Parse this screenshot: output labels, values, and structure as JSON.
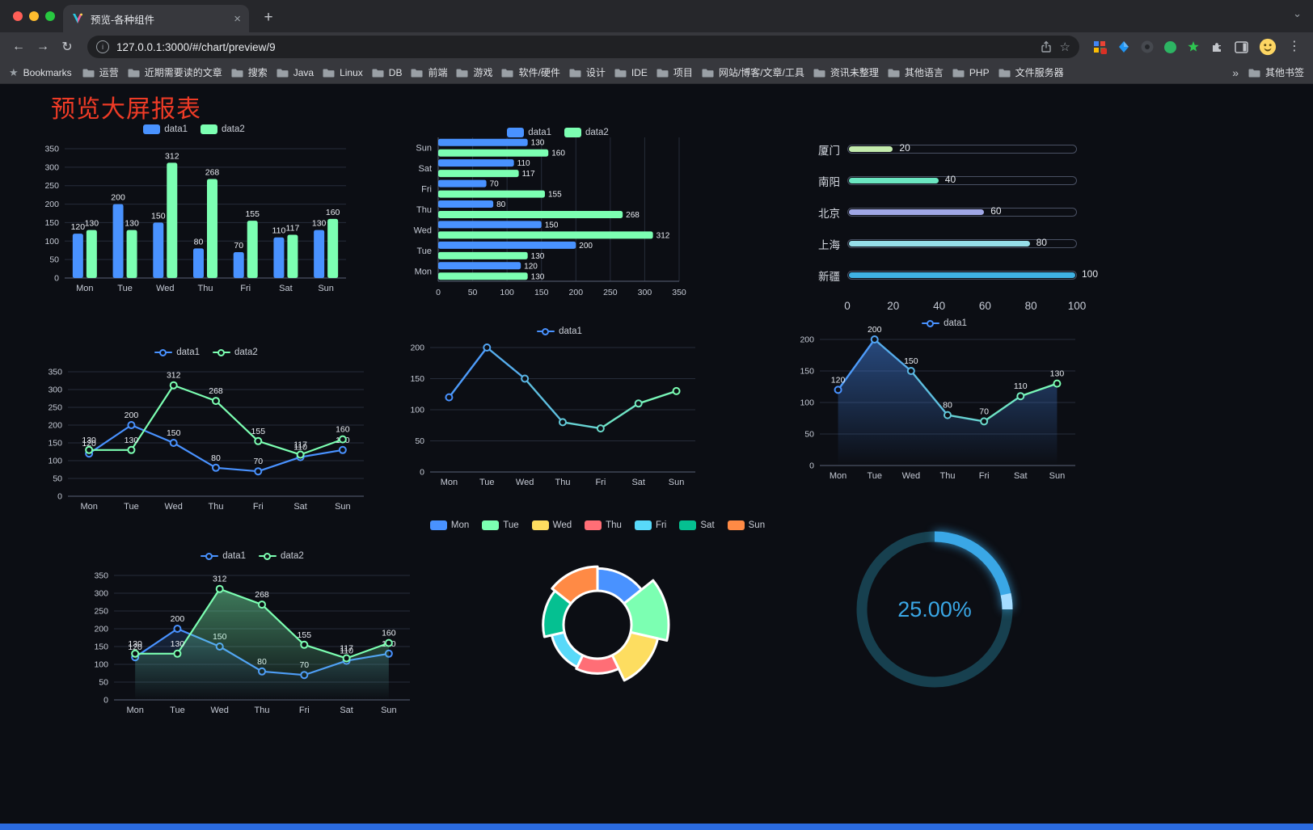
{
  "window": {
    "tab": {
      "title": "预览-各种组件",
      "close_icon": "×",
      "new_tab_icon": "+"
    },
    "icons": {
      "back": "←",
      "forward": "→",
      "reload": "↻",
      "menu": "⋮",
      "star": "☆",
      "tab_chevron": "⌄",
      "overflow": "»",
      "info": "i"
    },
    "address_bar": {
      "url": "127.0.0.1:3000/#/chart/preview/9"
    },
    "bookmarks_bar": {
      "first_item": "Bookmarks",
      "items": [
        "运营",
        "近期需要读的文章",
        "搜索",
        "Java",
        "Linux",
        "DB",
        "前端",
        "游戏",
        "软件/硬件",
        "设计",
        "IDE",
        "项目",
        "网站/博客/文章/工具",
        "资讯未整理",
        "其他语言",
        "PHP",
        "文件服务器"
      ],
      "other_bookmarks": "其他书签"
    }
  },
  "page": {
    "title": "预览大屏报表",
    "accent_color": "#ee3b26",
    "background": "#0c0e14",
    "footer_color": "#2b6be0"
  },
  "chart_data": [
    {
      "id": "grouped-bar",
      "type": "bar",
      "categories": [
        "Mon",
        "Tue",
        "Wed",
        "Thu",
        "Fri",
        "Sat",
        "Sun"
      ],
      "series": [
        {
          "name": "data1",
          "color": "#4992ff",
          "values": [
            120,
            200,
            150,
            80,
            70,
            110,
            130
          ]
        },
        {
          "name": "data2",
          "color": "#7cffb2",
          "values": [
            130,
            130,
            312,
            268,
            155,
            117,
            160
          ]
        }
      ],
      "ylim": [
        0,
        350
      ],
      "ystep": 50
    },
    {
      "id": "horizontal-bar",
      "type": "hbar",
      "categories": [
        "Mon",
        "Tue",
        "Wed",
        "Thu",
        "Fri",
        "Sat",
        "Sun"
      ],
      "series": [
        {
          "name": "data1",
          "color": "#4992ff",
          "values": [
            120,
            200,
            150,
            80,
            70,
            110,
            130
          ]
        },
        {
          "name": "data2",
          "color": "#7cffb2",
          "values": [
            130,
            130,
            312,
            268,
            155,
            117,
            160
          ]
        }
      ],
      "xlim": [
        0,
        350
      ],
      "xstep": 50
    },
    {
      "id": "city-progress",
      "type": "progress",
      "items": [
        {
          "label": "厦门",
          "value": 20,
          "color": "#c4ebad"
        },
        {
          "label": "南阳",
          "value": 40,
          "color": "#6be6c1"
        },
        {
          "label": "北京",
          "value": 60,
          "color": "#a0a7e6"
        },
        {
          "label": "上海",
          "value": 80,
          "color": "#96dee8"
        },
        {
          "label": "新疆",
          "value": 100,
          "color": "#3fb1e3"
        }
      ],
      "max": 100,
      "ticks": [
        0,
        20,
        40,
        60,
        80,
        100
      ]
    },
    {
      "id": "dual-line",
      "type": "line",
      "categories": [
        "Mon",
        "Tue",
        "Wed",
        "Thu",
        "Fri",
        "Sat",
        "Sun"
      ],
      "series": [
        {
          "name": "data1",
          "color": "#4992ff",
          "values": [
            120,
            200,
            150,
            80,
            70,
            110,
            130
          ],
          "labels": true
        },
        {
          "name": "data2",
          "color": "#7cffb2",
          "values": [
            130,
            130,
            312,
            268,
            155,
            117,
            160
          ],
          "labels": true
        }
      ],
      "ylim": [
        0,
        350
      ],
      "ystep": 50
    },
    {
      "id": "gradient-line",
      "type": "line",
      "categories": [
        "Mon",
        "Tue",
        "Wed",
        "Thu",
        "Fri",
        "Sat",
        "Sun"
      ],
      "series": [
        {
          "name": "data1",
          "color": "#4992ff",
          "color2": "#7cffb2",
          "values": [
            120,
            200,
            150,
            80,
            70,
            110,
            130
          ],
          "labels": false
        }
      ],
      "ylim": [
        0,
        200
      ],
      "ystep": 50
    },
    {
      "id": "area-line",
      "type": "line",
      "categories": [
        "Mon",
        "Tue",
        "Wed",
        "Thu",
        "Fri",
        "Sat",
        "Sun"
      ],
      "series": [
        {
          "name": "data1",
          "color": "#4992ff",
          "color2": "#7cffb2",
          "values": [
            120,
            200,
            150,
            80,
            70,
            110,
            130
          ],
          "labels": true,
          "area": true,
          "area_opacity": 0.45
        }
      ],
      "ylim": [
        0,
        200
      ],
      "ystep": 50
    },
    {
      "id": "dual-line-area",
      "type": "line",
      "categories": [
        "Mon",
        "Tue",
        "Wed",
        "Thu",
        "Fri",
        "Sat",
        "Sun"
      ],
      "series": [
        {
          "name": "data1",
          "color": "#4992ff",
          "values": [
            120,
            200,
            150,
            80,
            70,
            110,
            130
          ],
          "labels": true,
          "area": true,
          "area_opacity": 0.18
        },
        {
          "name": "data2",
          "color": "#7cffb2",
          "values": [
            130,
            130,
            312,
            268,
            155,
            117,
            160
          ],
          "labels": true,
          "area": true,
          "area_opacity": 0.45
        }
      ],
      "ylim": [
        0,
        350
      ],
      "ystep": 50
    },
    {
      "id": "rose-pie",
      "type": "rose",
      "items": [
        {
          "label": "Mon",
          "value": 120,
          "color": "#4992ff"
        },
        {
          "label": "Tue",
          "value": 200,
          "color": "#7cffb2"
        },
        {
          "label": "Wed",
          "value": 150,
          "color": "#fddd60"
        },
        {
          "label": "Thu",
          "value": 80,
          "color": "#ff6e76"
        },
        {
          "label": "Fri",
          "value": 70,
          "color": "#58d9f9"
        },
        {
          "label": "Sat",
          "value": 110,
          "color": "#05c091"
        },
        {
          "label": "Sun",
          "value": 130,
          "color": "#ff8a45"
        }
      ]
    },
    {
      "id": "ring-progress",
      "type": "gauge",
      "percent": 25,
      "label": "25.00%",
      "color": "#3aa7e6",
      "track_color": "#17404f",
      "tip_color": "#a6dcff"
    }
  ]
}
